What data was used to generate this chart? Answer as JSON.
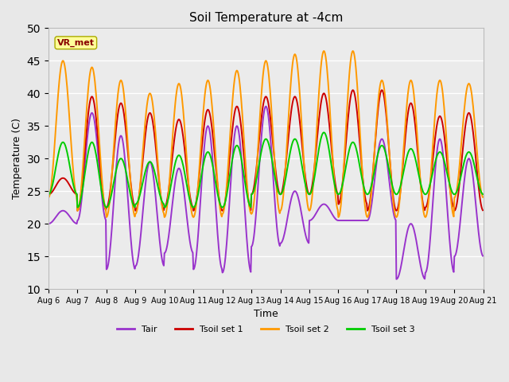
{
  "title": "Soil Temperature at -4cm",
  "xlabel": "Time",
  "ylabel": "Temperature (C)",
  "ylim": [
    10,
    50
  ],
  "yticks": [
    10,
    15,
    20,
    25,
    30,
    35,
    40,
    45,
    50
  ],
  "xtick_labels": [
    "Aug 6",
    "Aug 7",
    "Aug 8",
    "Aug 9",
    "Aug 10",
    "Aug 11",
    "Aug 12",
    "Aug 13",
    "Aug 14",
    "Aug 15",
    "Aug 16",
    "Aug 17",
    "Aug 18",
    "Aug 19",
    "Aug 20",
    "Aug 21"
  ],
  "colors": {
    "Tair": "#9933cc",
    "Tsoil_set1": "#cc0000",
    "Tsoil_set2": "#ff9900",
    "Tsoil_set3": "#00cc00"
  },
  "background_color": "#e8e8e8",
  "plot_bg_color": "#ebebeb",
  "annotation_text": "VR_met",
  "annotation_bg": "#ffff99",
  "annotation_border": "#aaaa00",
  "annotation_text_color": "#880000",
  "legend_labels": [
    "Tair",
    "Tsoil set 1",
    "Tsoil set 2",
    "Tsoil set 3"
  ],
  "linewidth": 1.4,
  "tair_daily": {
    "mins": [
      20.0,
      20.5,
      13.0,
      13.5,
      15.5,
      13.0,
      12.5,
      16.5,
      17.0,
      20.5,
      20.5,
      20.5,
      11.5,
      12.5,
      15.0
    ],
    "maxs": [
      22.0,
      37.0,
      33.5,
      29.5,
      28.5,
      35.0,
      35.0,
      38.0,
      25.0,
      23.0,
      20.5,
      33.0,
      20.0,
      33.0,
      30.0
    ]
  },
  "tsoil1_daily": {
    "mins": [
      24.5,
      22.0,
      22.5,
      22.0,
      22.5,
      22.0,
      22.0,
      24.5,
      24.5,
      24.5,
      23.0,
      22.0,
      22.0,
      22.5,
      22.0
    ],
    "maxs": [
      27.0,
      39.5,
      38.5,
      37.0,
      36.0,
      37.5,
      38.0,
      39.5,
      39.5,
      40.0,
      40.5,
      40.5,
      38.5,
      36.5,
      37.0
    ]
  },
  "tsoil2_daily": {
    "mins": [
      24.0,
      22.0,
      21.0,
      21.5,
      21.0,
      21.0,
      21.5,
      21.5,
      22.0,
      22.0,
      21.0,
      21.0,
      21.0,
      21.0,
      24.0
    ],
    "maxs": [
      45.0,
      44.0,
      42.0,
      40.0,
      41.5,
      42.0,
      43.5,
      45.0,
      46.0,
      46.5,
      46.5,
      42.0,
      42.0,
      42.0,
      41.5
    ]
  },
  "tsoil3_daily": {
    "mins": [
      24.5,
      22.5,
      22.5,
      23.0,
      22.5,
      22.5,
      22.5,
      24.5,
      24.5,
      24.5,
      24.5,
      24.5,
      24.5,
      24.5,
      24.5
    ],
    "maxs": [
      32.5,
      32.5,
      30.0,
      29.5,
      30.5,
      31.0,
      32.0,
      33.0,
      33.0,
      34.0,
      32.5,
      32.0,
      31.5,
      31.0,
      31.0
    ]
  }
}
